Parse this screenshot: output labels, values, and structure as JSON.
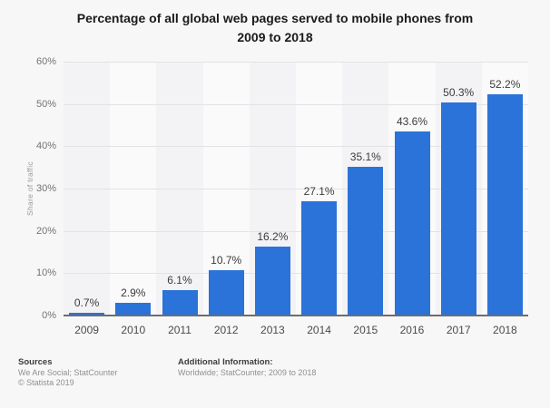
{
  "header": {
    "title_lines": [
      "Percentage of all global web pages served to mobile phones from",
      "2009 to 2018"
    ]
  },
  "chart_data": {
    "type": "bar",
    "title": "Percentage of all global web pages served to mobile phones from 2009 to 2018",
    "categories": [
      "2009",
      "2010",
      "2011",
      "2012",
      "2013",
      "2014",
      "2015",
      "2016",
      "2017",
      "2018"
    ],
    "values": [
      0.7,
      2.9,
      6.1,
      10.7,
      16.2,
      27.1,
      35.1,
      43.6,
      50.3,
      52.2
    ],
    "value_labels": [
      "0.7%",
      "2.9%",
      "6.1%",
      "10.7%",
      "16.2%",
      "27.1%",
      "35.1%",
      "43.6%",
      "50.3%",
      "52.2%"
    ],
    "xlabel": "",
    "ylabel": "Share of traffic",
    "ylim": [
      0,
      60
    ],
    "ytick_step": 10,
    "ytick_labels": [
      "0%",
      "10%",
      "20%",
      "30%",
      "40%",
      "50%",
      "60%"
    ],
    "grid": true,
    "legend": "none",
    "bar_color": "#2b72d9",
    "plot_band_colors": [
      "#f3f3f5",
      "#fafafa"
    ]
  },
  "footer": {
    "sources_heading": "Sources",
    "sources_line": "We Are Social; StatCounter",
    "copyright": "© Statista 2019",
    "additional_heading": "Additional Information:",
    "additional_line": "Worldwide; StatCounter; 2009 to 2018"
  }
}
